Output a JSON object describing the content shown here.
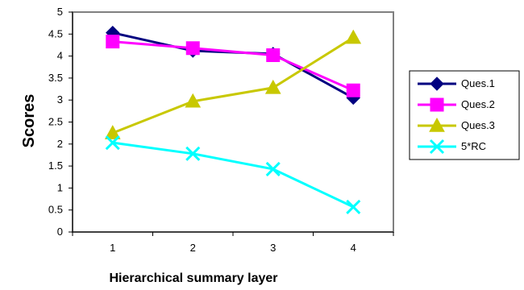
{
  "chart_data": {
    "type": "line",
    "title": "",
    "xlabel": "Hierarchical summary layer",
    "ylabel": "Scores",
    "categories": [
      "1",
      "2",
      "3",
      "4"
    ],
    "ylim": [
      0,
      5
    ],
    "yticks": [
      "0",
      "0.5",
      "1",
      "1.5",
      "2",
      "2.5",
      "3",
      "3.5",
      "4",
      "4.5",
      "5"
    ],
    "grid": false,
    "legend_position": "right",
    "series": [
      {
        "name": "Ques.1",
        "values": [
          4.53,
          4.12,
          4.05,
          3.05
        ],
        "color": "#000080",
        "marker": "diamond"
      },
      {
        "name": "Ques.2",
        "values": [
          4.33,
          4.18,
          4.02,
          3.22
        ],
        "color": "#ff00ff",
        "marker": "square"
      },
      {
        "name": "Ques.3",
        "values": [
          2.25,
          2.97,
          3.28,
          4.42
        ],
        "color": "#c8c800",
        "marker": "triangle"
      },
      {
        "name": "5*RC",
        "values": [
          2.03,
          1.78,
          1.43,
          0.57
        ],
        "color": "#00ffff",
        "marker": "x"
      }
    ]
  }
}
